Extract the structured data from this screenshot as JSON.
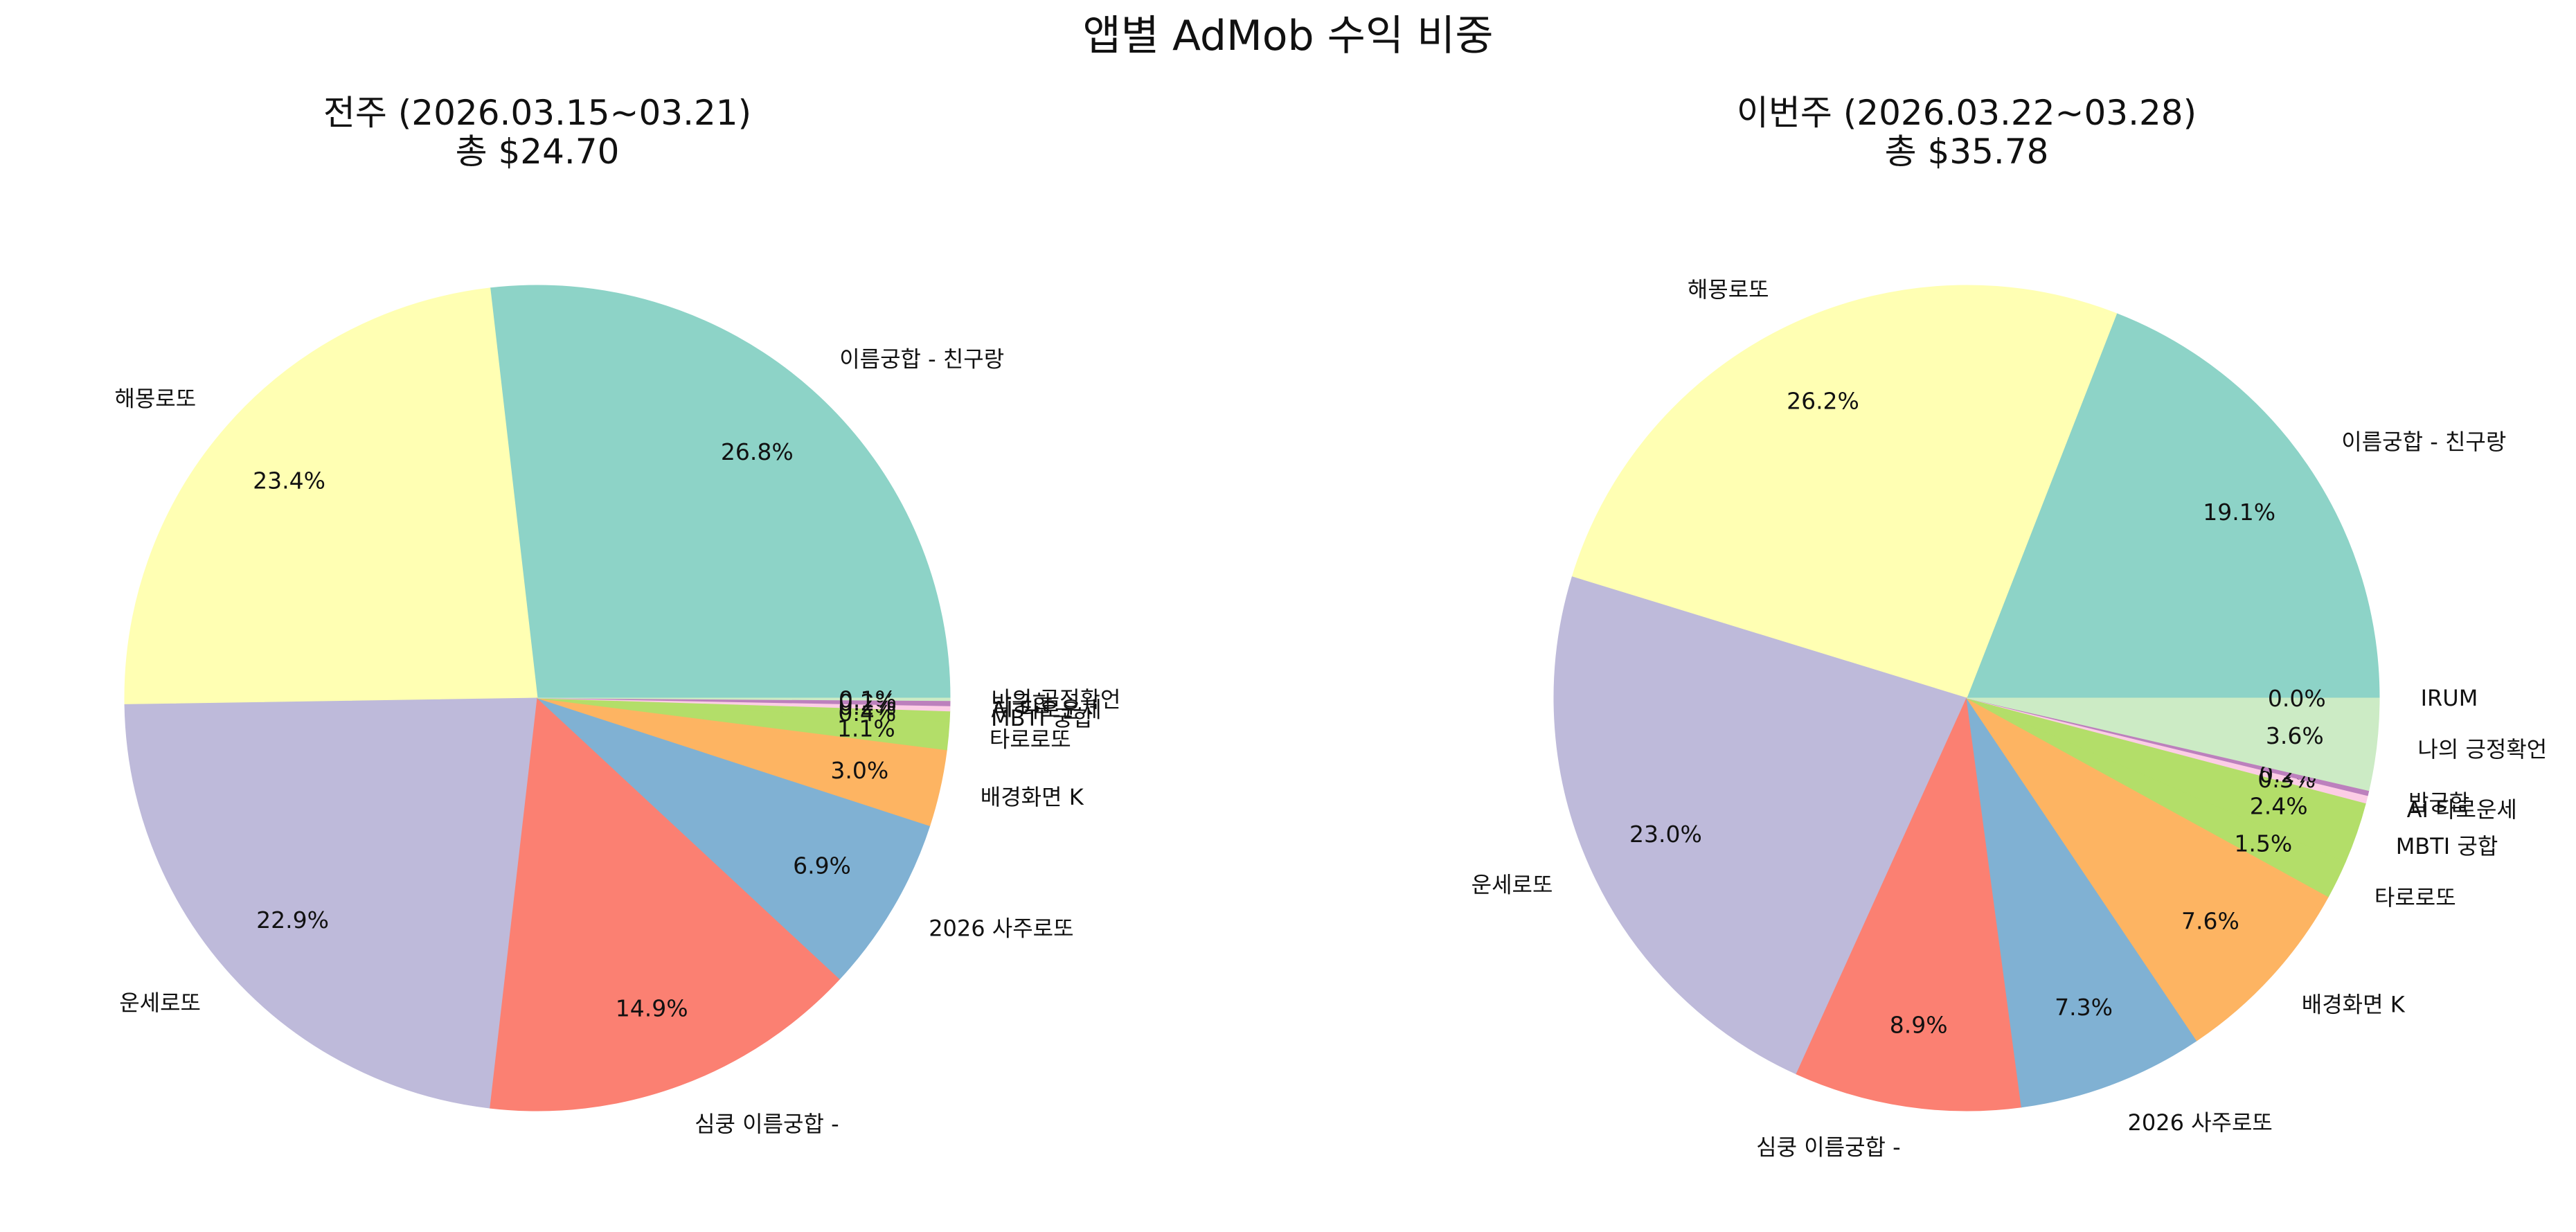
{
  "figure_title": "앱별 AdMob 수익 비중",
  "chart_data": [
    {
      "type": "pie",
      "title": "전주 (2026.03.15~03.21)",
      "subtitle": "총 $24.70",
      "start_angle": 0,
      "direction": "counterclockwise",
      "slices": [
        {
          "label": "이름궁합 - 친구랑",
          "value": 26.8,
          "pct_label": "26.8%",
          "color": "#8dd3c7"
        },
        {
          "label": "해몽로또",
          "value": 23.4,
          "pct_label": "23.4%",
          "color": "#ffffb3"
        },
        {
          "label": "운세로또",
          "value": 22.9,
          "pct_label": "22.9%",
          "color": "#bebada"
        },
        {
          "label": "심쿵 이름궁합 -",
          "value": 14.9,
          "pct_label": "14.9%",
          "color": "#fb8072"
        },
        {
          "label": "2026 사주로또",
          "value": 6.9,
          "pct_label": "6.9%",
          "color": "#80b1d3"
        },
        {
          "label": "배경화면 K",
          "value": 3.0,
          "pct_label": "3.0%",
          "color": "#fdb462"
        },
        {
          "label": "타로로또",
          "value": 1.1,
          "pct_label": "1.1%",
          "color": "#b3de69"
        },
        {
          "label": "MBTI 궁합",
          "value": 0.4,
          "pct_label": "0.4%",
          "color": "#b3de69"
        },
        {
          "label": "AI 타로운세",
          "value": 0.2,
          "pct_label": "0.2%",
          "color": "#fccde5"
        },
        {
          "label": "밥궁합",
          "value": 0.2,
          "pct_label": "0.2%",
          "color": "#bc80bd"
        },
        {
          "label": "나의 긍정확언",
          "value": 0.1,
          "pct_label": "0.1%",
          "color": "#ccebc5"
        }
      ]
    },
    {
      "type": "pie",
      "title": "이번주 (2026.03.22~03.28)",
      "subtitle": "총 $35.78",
      "start_angle": 0,
      "direction": "counterclockwise",
      "slices": [
        {
          "label": "이름궁합 - 친구랑",
          "value": 19.1,
          "pct_label": "19.1%",
          "color": "#8dd3c7"
        },
        {
          "label": "해몽로또",
          "value": 26.2,
          "pct_label": "26.2%",
          "color": "#ffffb3"
        },
        {
          "label": "운세로또",
          "value": 23.0,
          "pct_label": "23.0%",
          "color": "#bebada"
        },
        {
          "label": "심쿵 이름궁합 -",
          "value": 8.9,
          "pct_label": "8.9%",
          "color": "#fb8072"
        },
        {
          "label": "2026 사주로또",
          "value": 7.3,
          "pct_label": "7.3%",
          "color": "#80b1d3"
        },
        {
          "label": "배경화면 K",
          "value": 7.6,
          "pct_label": "7.6%",
          "color": "#fdb462"
        },
        {
          "label": "타로로또",
          "value": 1.5,
          "pct_label": "1.5%",
          "color": "#b3de69"
        },
        {
          "label": "MBTI 궁합",
          "value": 2.4,
          "pct_label": "2.4%",
          "color": "#b3de69"
        },
        {
          "label": "AI 타로운세",
          "value": 0.3,
          "pct_label": "0.3%",
          "color": "#fccde5"
        },
        {
          "label": "밥궁합",
          "value": 0.2,
          "pct_label": "0.2%",
          "color": "#bc80bd"
        },
        {
          "label": "나의 긍정확언",
          "value": 3.6,
          "pct_label": "3.6%",
          "color": "#ccebc5"
        },
        {
          "label": "IRUM",
          "value": 0.0,
          "pct_label": "0.0%",
          "color": "#ccebc5"
        }
      ]
    }
  ]
}
